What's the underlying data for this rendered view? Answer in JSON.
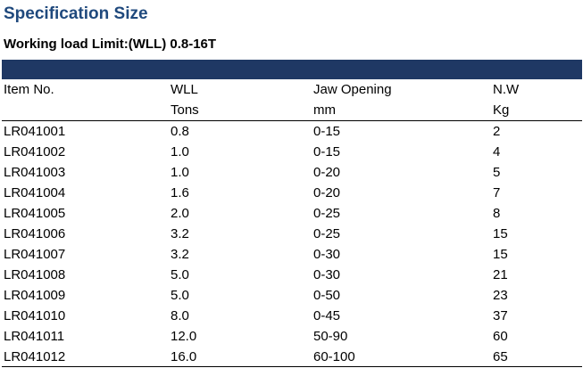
{
  "title": "Specification Size",
  "subtitle": "Working load Limit:(WLL) 0.8-16T",
  "colors": {
    "title": "#1f497d",
    "header_bar": "#1f3864"
  },
  "table": {
    "headers": [
      {
        "line1": "Item No.",
        "line2": ""
      },
      {
        "line1": "WLL",
        "line2": "Tons"
      },
      {
        "line1": "Jaw Opening",
        "line2": "mm"
      },
      {
        "line1": "N.W",
        "line2": "Kg"
      }
    ],
    "rows": [
      [
        "LR041001",
        "0.8",
        "0-15",
        "2"
      ],
      [
        "LR041002",
        "1.0",
        "0-15",
        "4"
      ],
      [
        "LR041003",
        "1.0",
        "0-20",
        "5"
      ],
      [
        "LR041004",
        "1.6",
        "0-20",
        "7"
      ],
      [
        "LR041005",
        "2.0",
        "0-25",
        "8"
      ],
      [
        "LR041006",
        "3.2",
        "0-25",
        "15"
      ],
      [
        "LR041007",
        "3.2",
        "0-30",
        "15"
      ],
      [
        "LR041008",
        "5.0",
        "0-30",
        "21"
      ],
      [
        "LR041009",
        "5.0",
        "0-50",
        "23"
      ],
      [
        "LR041010",
        "8.0",
        "0-45",
        "37"
      ],
      [
        "LR041011",
        "12.0",
        "50-90",
        "60"
      ],
      [
        "LR041012",
        "16.0",
        "60-100",
        "65"
      ]
    ]
  }
}
